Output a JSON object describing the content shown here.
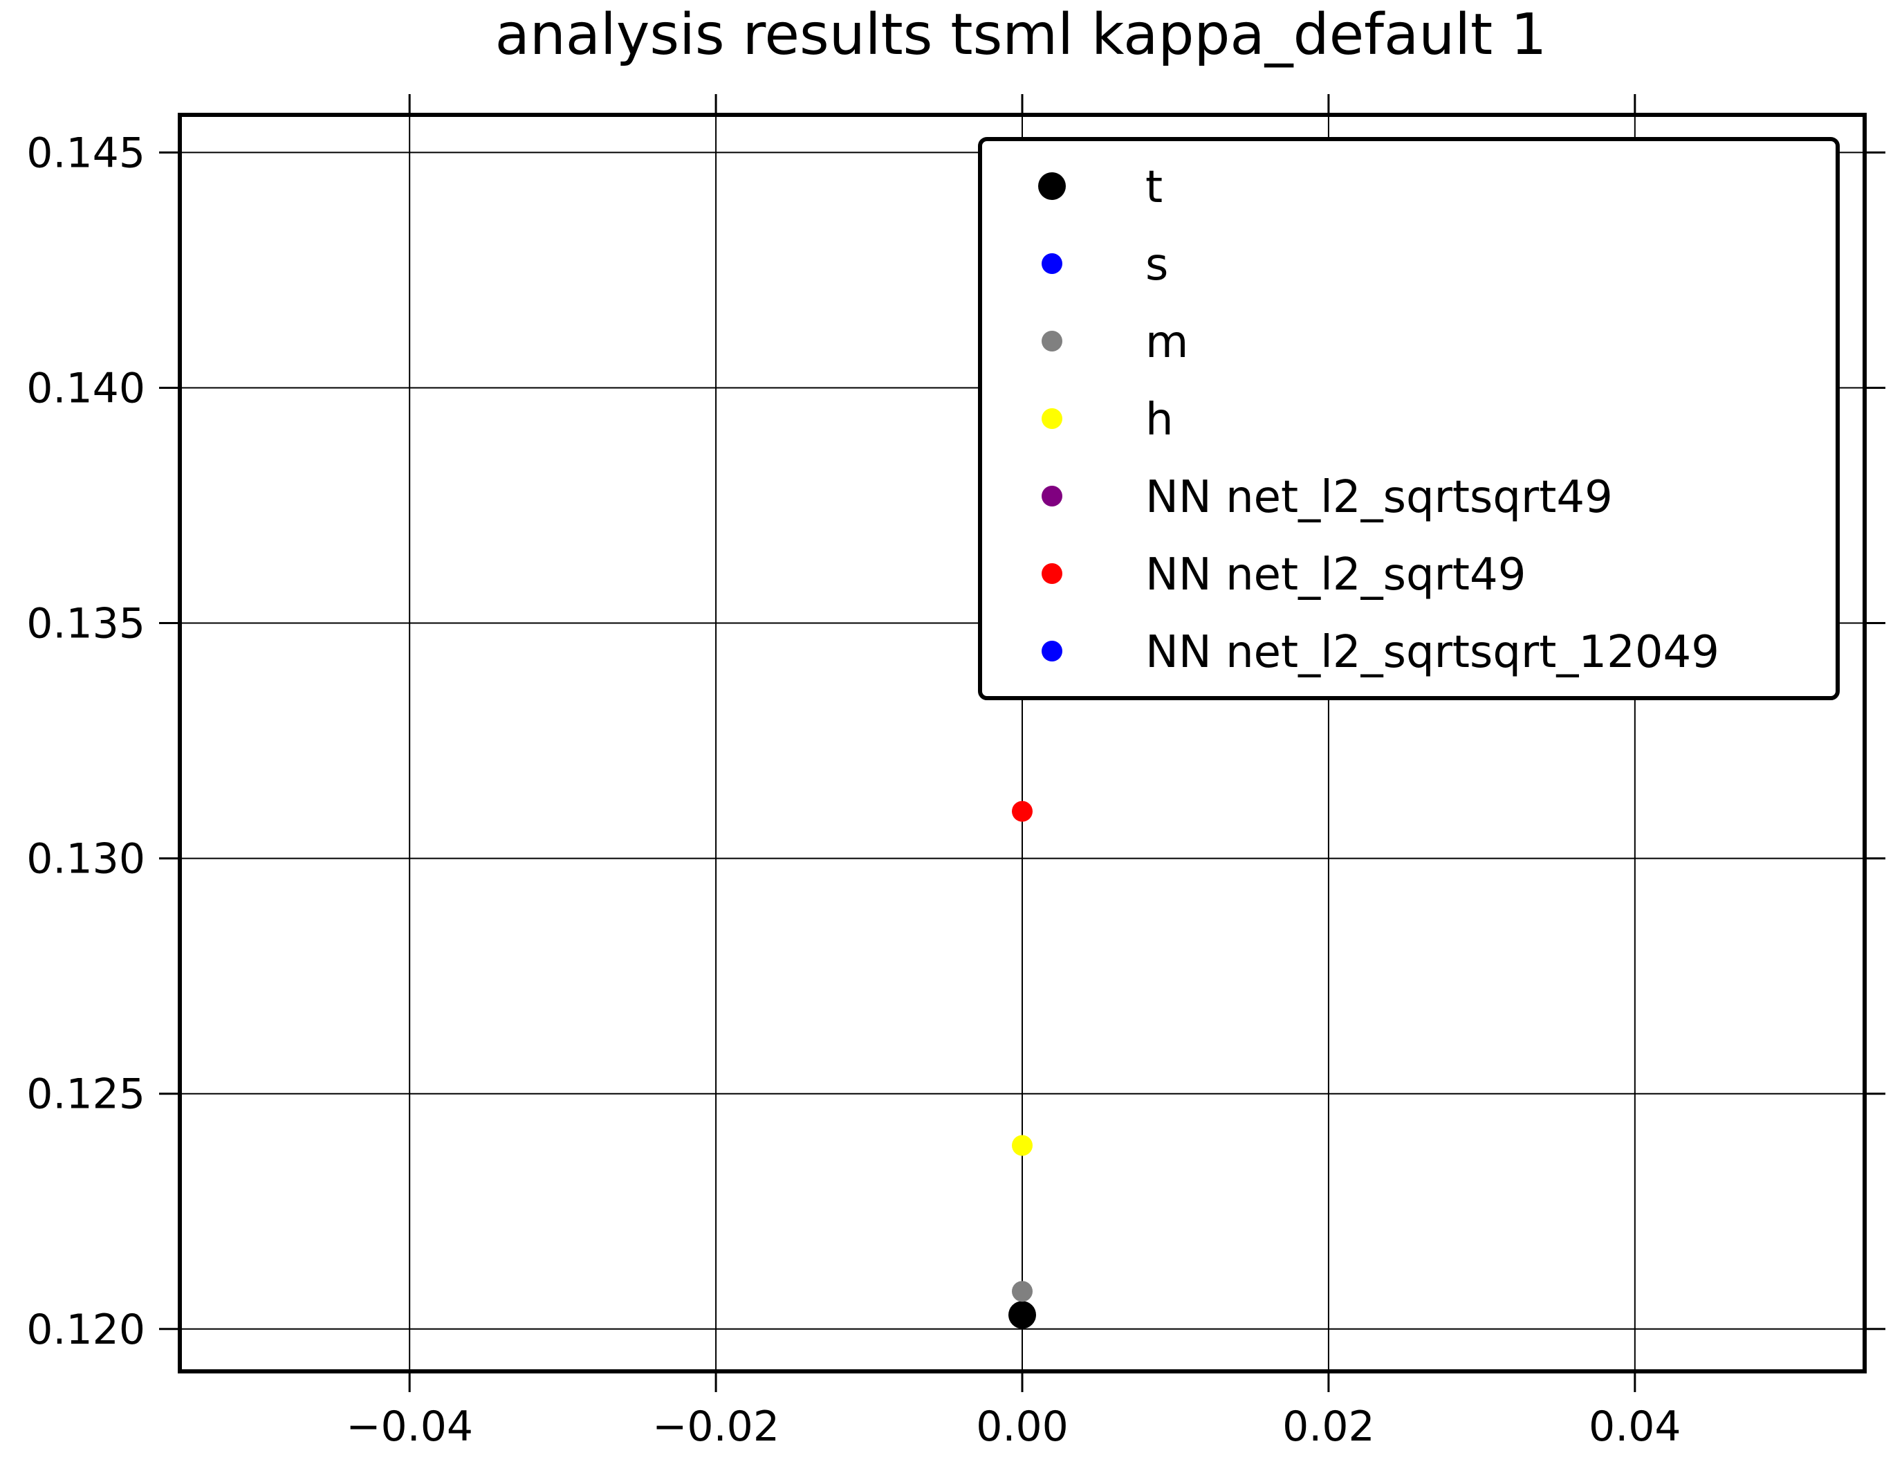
{
  "chart_data": {
    "type": "scatter",
    "title": "analysis results tsml  kappa_default 1",
    "xlabel": "",
    "ylabel": "",
    "xlim": [
      -0.055,
      0.055
    ],
    "ylim": [
      0.1191,
      0.1458
    ],
    "xticks": [
      -0.04,
      -0.02,
      0.0,
      0.02,
      0.04
    ],
    "xtick_labels": [
      "−0.04",
      "−0.02",
      "0.00",
      "0.02",
      "0.04"
    ],
    "yticks": [
      0.12,
      0.125,
      0.13,
      0.135,
      0.14,
      0.145
    ],
    "ytick_labels": [
      "0.120",
      "0.125",
      "0.130",
      "0.135",
      "0.140",
      "0.145"
    ],
    "grid": true,
    "legend_position": "top-right",
    "series": [
      {
        "name": "t",
        "color": "#000000",
        "marker": "large",
        "points": [
          {
            "x": 0.0,
            "y": 0.1203
          }
        ]
      },
      {
        "name": "s",
        "color": "#0000ff",
        "marker": "small",
        "points": []
      },
      {
        "name": "m",
        "color": "#808080",
        "marker": "small",
        "points": [
          {
            "x": 0.0,
            "y": 0.1208
          }
        ]
      },
      {
        "name": "h",
        "color": "#ffff00",
        "marker": "small",
        "points": [
          {
            "x": 0.0,
            "y": 0.1239
          }
        ]
      },
      {
        "name": "NN net_l2_sqrtsqrt49",
        "color": "#800080",
        "marker": "small",
        "points": []
      },
      {
        "name": "NN net_l2_sqrt49",
        "color": "#ff0000",
        "marker": "small",
        "points": [
          {
            "x": 0.0,
            "y": 0.131
          }
        ]
      },
      {
        "name": "NN net_l2_sqrtsqrt_12049",
        "color": "#0000ff",
        "marker": "small",
        "points": []
      }
    ]
  }
}
